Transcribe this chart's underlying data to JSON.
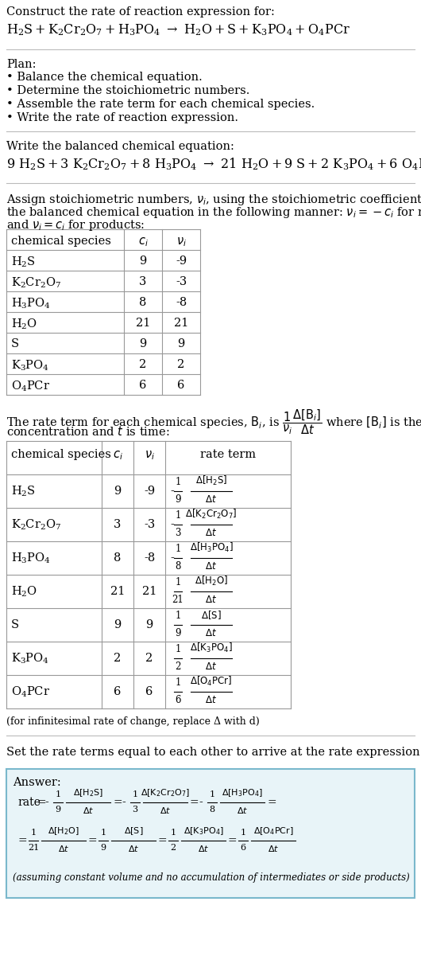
{
  "title_line1": "Construct the rate of reaction expression for:",
  "plan_header": "Plan:",
  "plan_items": [
    "• Balance the chemical equation.",
    "• Determine the stoichiometric numbers.",
    "• Assemble the rate term for each chemical species.",
    "• Write the rate of reaction expression."
  ],
  "balanced_header": "Write the balanced chemical equation:",
  "table1_headers": [
    "chemical species",
    "c_i",
    "v_i"
  ],
  "table1_rows": [
    [
      "H_2S",
      "9",
      "-9"
    ],
    [
      "K_2Cr_2O_7",
      "3",
      "-3"
    ],
    [
      "H_3PO_4",
      "8",
      "-8"
    ],
    [
      "H_2O",
      "21",
      "21"
    ],
    [
      "S",
      "9",
      "9"
    ],
    [
      "K_3PO_4",
      "2",
      "2"
    ],
    [
      "O_4PCr",
      "6",
      "6"
    ]
  ],
  "table2_rows": [
    [
      "H_2S",
      "9",
      "-9",
      "-",
      "1",
      "9",
      "\\Delta[H_2S]",
      "\\Delta t"
    ],
    [
      "K_2Cr_2O_7",
      "3",
      "-3",
      "-",
      "1",
      "3",
      "\\Delta[K_2Cr_2O_7]",
      "\\Delta t"
    ],
    [
      "H_3PO_4",
      "8",
      "-8",
      "-",
      "1",
      "8",
      "\\Delta[H_3PO_4]",
      "\\Delta t"
    ],
    [
      "H_2O",
      "21",
      "21",
      "",
      "1",
      "21",
      "\\Delta[H_2O]",
      "\\Delta t"
    ],
    [
      "S",
      "9",
      "9",
      "",
      "1",
      "9",
      "\\Delta[S]",
      "\\Delta t"
    ],
    [
      "K_3PO_4",
      "2",
      "2",
      "",
      "1",
      "2",
      "\\Delta[K_3PO_4]",
      "\\Delta t"
    ],
    [
      "O_4PCr",
      "6",
      "6",
      "",
      "1",
      "6",
      "\\Delta[O_4PCr]",
      "\\Delta t"
    ]
  ],
  "infinitesimal_note": "(for infinitesimal rate of change, replace Δ with d)",
  "set_rate_text": "Set the rate terms equal to each other to arrive at the rate expression:",
  "answer_box_color": "#e8f4f8",
  "answer_box_border": "#7ab8cc",
  "answer_label": "Answer:",
  "answer_note": "(assuming constant volume and no accumulation of intermediates or side products)",
  "bg_color": "#ffffff",
  "text_color": "#000000",
  "table_border_color": "#999999",
  "separator_color": "#bbbbbb"
}
